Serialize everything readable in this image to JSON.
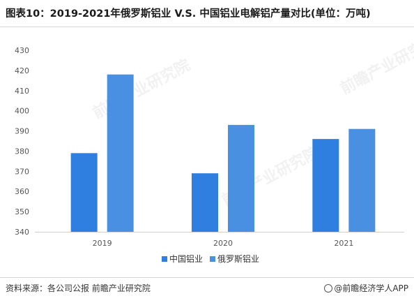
{
  "header": {
    "title": "图表10：2019-2021年俄罗斯铝业 V.S. 中国铝业电解铝产量对比(单位：万吨)"
  },
  "footer": {
    "source": "资料来源：各公司公报 前瞻产业研究院",
    "brand": "@前瞻经济学人APP"
  },
  "watermark": {
    "text": "前瞻产业研究院"
  },
  "chart_data": {
    "type": "bar",
    "categories": [
      "2019",
      "2020",
      "2021"
    ],
    "series": [
      {
        "name": "中国铝业",
        "values": [
          379,
          369,
          386
        ],
        "color": "#2f7fe0"
      },
      {
        "name": "俄罗斯铝业",
        "values": [
          418,
          393,
          391
        ],
        "color": "#4a90e2"
      }
    ],
    "ylim": [
      340,
      430
    ],
    "yticks": [
      "340",
      "350",
      "360",
      "370",
      "380",
      "390",
      "400",
      "410",
      "420",
      "430"
    ],
    "grid": false,
    "legend_position": "bottom-center"
  }
}
